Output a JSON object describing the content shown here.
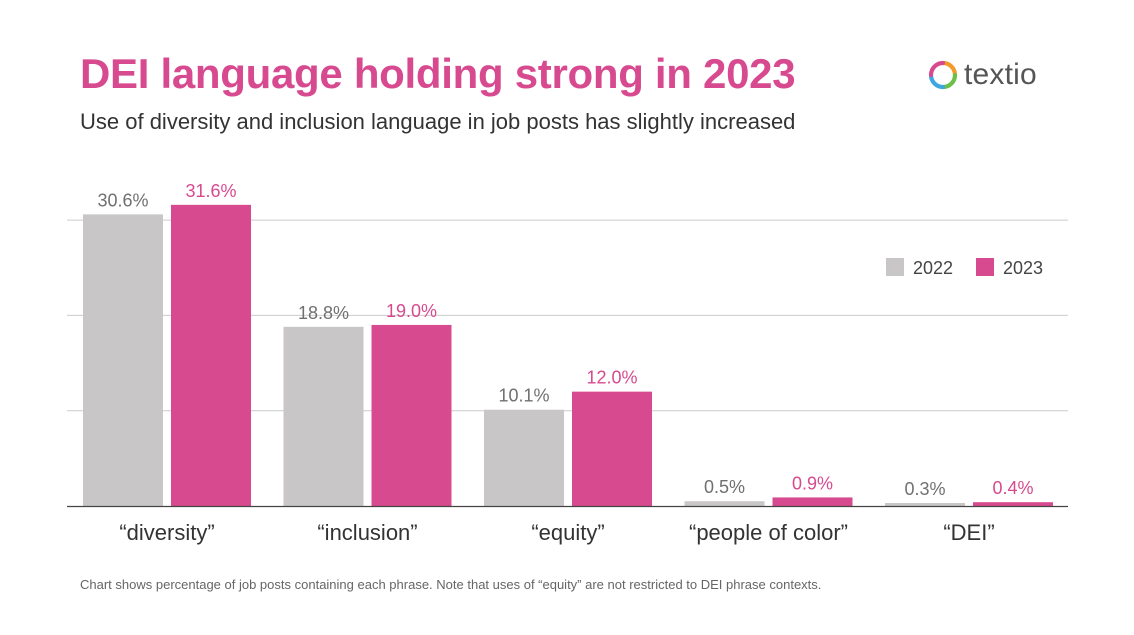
{
  "header": {
    "title": "DEI language holding strong in 2023",
    "subtitle": "Use of diversity and inclusion language in job posts has slightly increased",
    "logo_text": "textio"
  },
  "colors": {
    "accent": "#d84a8f",
    "series_2022": "#c8c6c6",
    "series_2023": "#d84a8f",
    "label_2022": "#707070",
    "label_2023": "#d84a8f",
    "gridline": "#cccccc",
    "logo_orange": "#f39a2b",
    "logo_green": "#6cc04a",
    "logo_blue": "#3fa7e0",
    "logo_pink": "#d84a8f"
  },
  "chart_data": {
    "type": "bar",
    "title": "DEI language holding strong in 2023",
    "xlabel": "",
    "ylabel": "",
    "ylim": [
      0,
      30
    ],
    "yticks": [
      0,
      10,
      20,
      30
    ],
    "grid": true,
    "legend_position": "top-right",
    "categories": [
      "“diversity”",
      "“inclusion”",
      "“equity”",
      "“people of color”",
      "“DEI”"
    ],
    "series": [
      {
        "name": "2022",
        "values": [
          30.6,
          18.8,
          10.1,
          0.5,
          0.3
        ],
        "labels": [
          "30.6%",
          "18.8%",
          "10.1%",
          "0.5%",
          "0.3%"
        ]
      },
      {
        "name": "2023",
        "values": [
          31.6,
          19.0,
          12.0,
          0.9,
          0.4
        ],
        "labels": [
          "31.6%",
          "19.0%",
          "12.0%",
          "0.9%",
          "0.4%"
        ]
      }
    ]
  },
  "footnote": "Chart shows percentage of job posts containing each phrase. Note that uses of “equity” are not restricted to DEI phrase contexts."
}
